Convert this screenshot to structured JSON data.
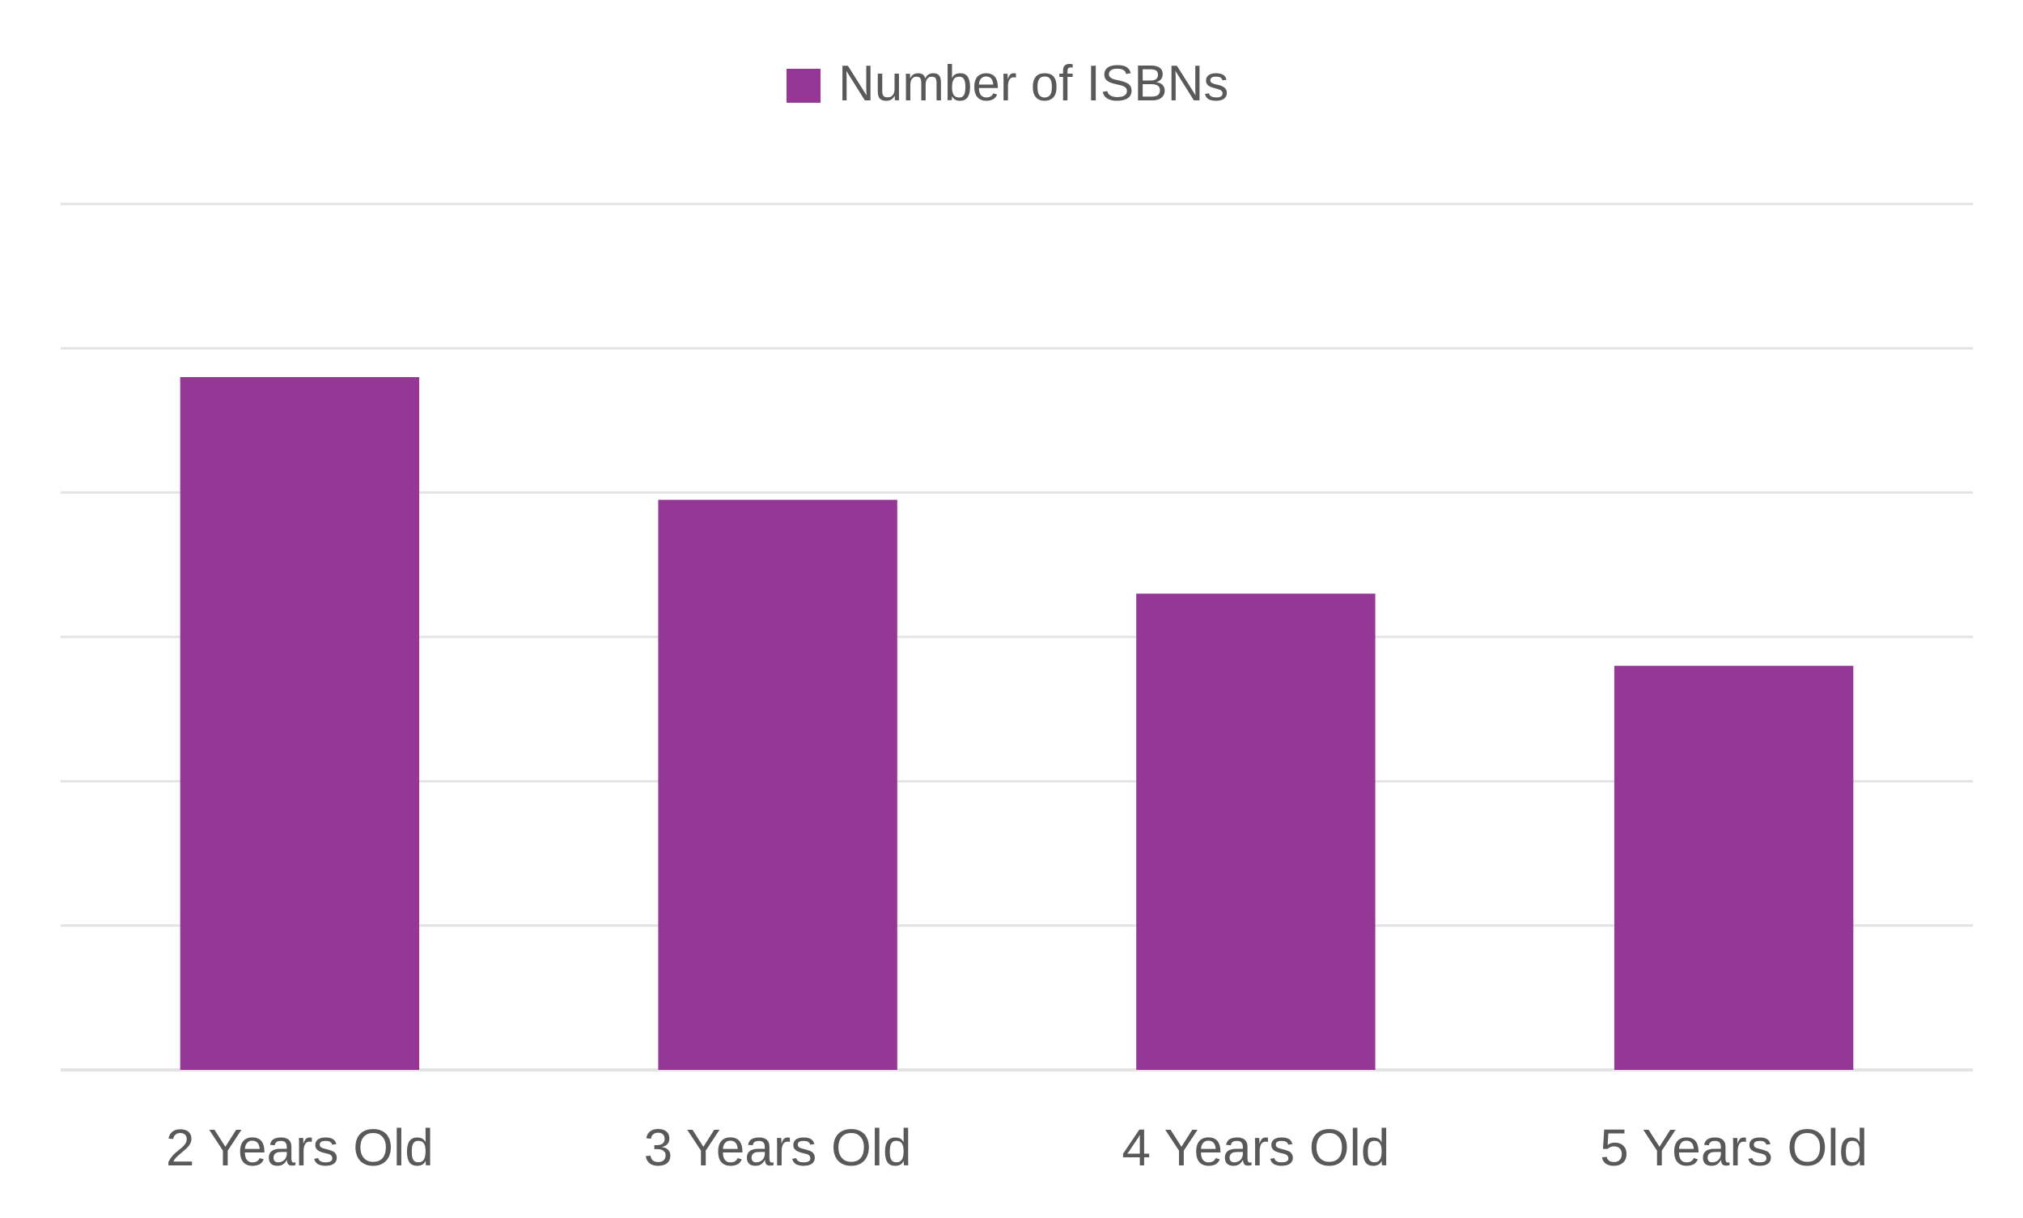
{
  "chart_data": {
    "type": "bar",
    "title": "",
    "xlabel": "",
    "ylabel": "",
    "categories": [
      "2 Years Old",
      "3 Years Old",
      "4 Years Old",
      "5 Years Old"
    ],
    "series": [
      {
        "name": "Number of ISBNs",
        "values": [
          4.8,
          3.95,
          3.3,
          2.8
        ]
      }
    ],
    "ylim": [
      0,
      6
    ],
    "gridlines": [
      0,
      1,
      2,
      3,
      4,
      5,
      6
    ],
    "y_tick_labels_visible": false,
    "grid": true,
    "legend": "top-center",
    "colors": {
      "bar": "#953794",
      "grid": "#e3e3e3",
      "text": "#595959",
      "background": "#ffffff"
    }
  }
}
